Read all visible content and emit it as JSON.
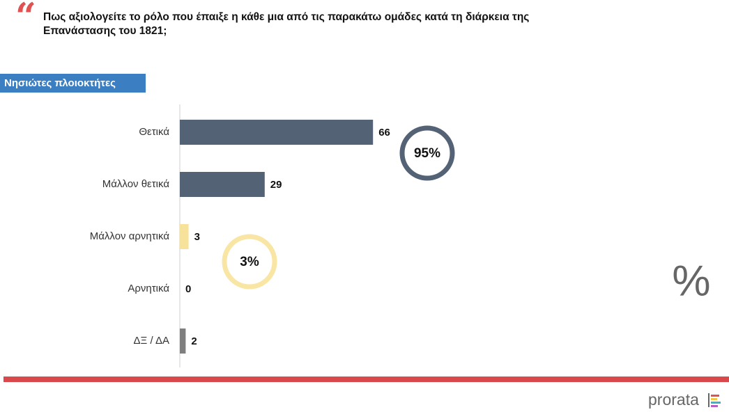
{
  "chart_data": {
    "type": "hbar",
    "title_lines": [
      "Πως αξιολογείτε το ρόλο που έπαιξε η κάθε μια από τις παρακάτω ομάδες κατά τη διάρκεια της",
      "Επανάστασης του 1821;"
    ],
    "subtitle": "Νησιώτες πλοιοκτήτες",
    "categories": [
      "Θετικά",
      "Μάλλον θετικά",
      "Μάλλον αρνητικά",
      "Αρνητικά",
      "ΔΞ / ΔΑ"
    ],
    "values": [
      66,
      29,
      3,
      0,
      2
    ],
    "colors": [
      "#546275",
      "#546275",
      "#f7e29c",
      "#f7e29c",
      "#7f7f7f"
    ],
    "annotations": [
      {
        "text": "95%",
        "color": "#546275"
      },
      {
        "text": "3%",
        "color": "#f9e6a4"
      }
    ],
    "unit_symbol": "%",
    "brand": "prorata"
  }
}
